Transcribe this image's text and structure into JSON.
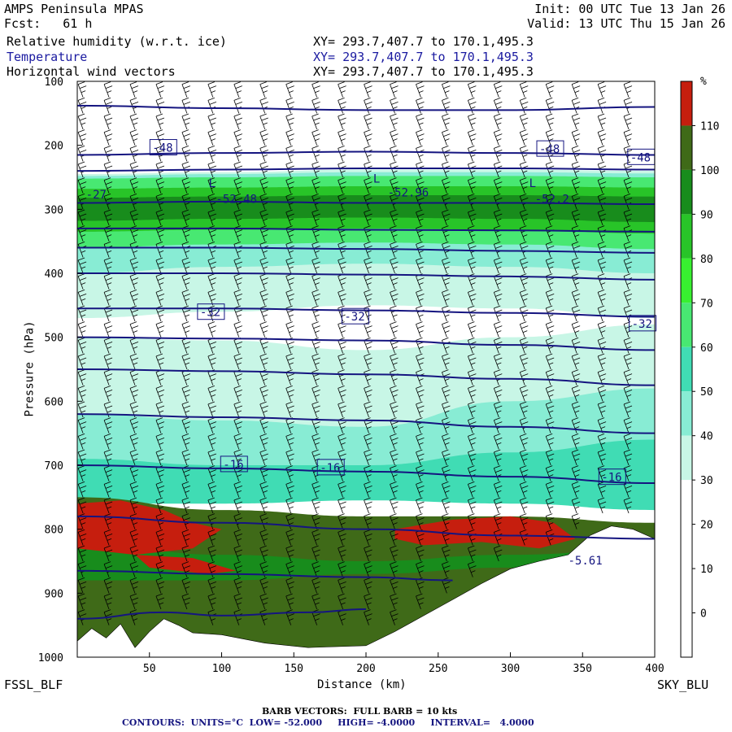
{
  "header": {
    "model": "AMPS Peninsula MPAS",
    "fcst": "Fcst:   61 h",
    "init": "Init: 00 UTC Tue 13 Jan 26",
    "valid": "Valid: 13 UTC Thu 15 Jan 26",
    "fields": [
      {
        "name": "Relative humidity (w.r.t. ice)",
        "xy": "XY= 293.7,407.7 to 170.1,495.3"
      },
      {
        "name": "Temperature",
        "xy": "XY= 293.7,407.7 to 170.1,495.3"
      },
      {
        "name": "Horizontal wind vectors",
        "xy": "XY= 293.7,407.7 to 170.1,495.3"
      }
    ]
  },
  "corners": {
    "left": "FSSL_BLF",
    "right": "SKY_BLU"
  },
  "footer": {
    "barb": "BARB VECTORS:  FULL BARB = 10 kts",
    "contours": "CONTOURS:  UNITS=°C  LOW= -52.000     HIGH= -4.0000     INTERVAL=   4.0000"
  },
  "colors": {
    "rh_0_10": "#ffffff",
    "rh_10_20": "#ffffff",
    "rh_20_30": "#ffffff",
    "rh_30_40": "#c8f6e6",
    "rh_40_50": "#88ecd4",
    "rh_50_60": "#40dcb4",
    "rh_60_70": "#48e872",
    "rh_70_80": "#38f030",
    "rh_80_90": "#28c428",
    "rh_90_100": "#188c1c",
    "rh_100_110": "#3f6a18",
    "rh_110_plus": "#c61e0e",
    "contour": "#151580",
    "terrain": "#ffffff"
  },
  "chart_data": {
    "type": "heatmap",
    "title": "AMPS Peninsula MPAS",
    "xlabel": "Distance (km)",
    "ylabel": "Pressure (hPa)",
    "xlim": [
      0,
      400
    ],
    "ylim": [
      1000,
      100
    ],
    "x_ticks": [
      50,
      100,
      150,
      200,
      250,
      300,
      350,
      400
    ],
    "y_ticks": [
      100,
      200,
      300,
      400,
      500,
      600,
      700,
      800,
      900,
      1000
    ],
    "colorbar": {
      "unit": "%",
      "labels": [
        "110",
        "100",
        "90",
        "80",
        "70",
        "60",
        "50",
        "40",
        "30",
        "20",
        "10",
        "0"
      ],
      "bins": [
        {
          "from": 110,
          "to": 120,
          "color": "#c61e0e"
        },
        {
          "from": 100,
          "to": 110,
          "color": "#3f6a18"
        },
        {
          "from": 90,
          "to": 100,
          "color": "#188c1c"
        },
        {
          "from": 80,
          "to": 90,
          "color": "#28c428"
        },
        {
          "from": 70,
          "to": 80,
          "color": "#38f030"
        },
        {
          "from": 60,
          "to": 70,
          "color": "#48e872"
        },
        {
          "from": 50,
          "to": 60,
          "color": "#40dcb4"
        },
        {
          "from": 40,
          "to": 50,
          "color": "#88ecd4"
        },
        {
          "from": 30,
          "to": 40,
          "color": "#c8f6e6"
        },
        {
          "from": 20,
          "to": 30,
          "color": "#ffffff"
        },
        {
          "from": 10,
          "to": 20,
          "color": "#ffffff"
        },
        {
          "from": 0,
          "to": 10,
          "color": "#ffffff"
        },
        {
          "from": -10,
          "to": 0,
          "color": "#ffffff"
        }
      ]
    },
    "rh_bands": [
      {
        "color": "#c8f6e6",
        "top": [
          [
            0,
            245
          ],
          [
            100,
            242
          ],
          [
            200,
            238
          ],
          [
            300,
            238
          ],
          [
            400,
            240
          ]
        ],
        "bottom": [
          [
            0,
            470
          ],
          [
            100,
            460
          ],
          [
            200,
            450
          ],
          [
            300,
            455
          ],
          [
            400,
            470
          ]
        ]
      },
      {
        "color": "#88ecd4",
        "top": [
          [
            0,
            248
          ],
          [
            100,
            245
          ],
          [
            200,
            242
          ],
          [
            300,
            242
          ],
          [
            400,
            244
          ]
        ],
        "bottom": [
          [
            0,
            400
          ],
          [
            100,
            390
          ],
          [
            200,
            385
          ],
          [
            300,
            390
          ],
          [
            400,
            400
          ]
        ]
      },
      {
        "color": "#48e872",
        "top": [
          [
            0,
            252
          ],
          [
            100,
            250
          ],
          [
            200,
            248
          ],
          [
            300,
            248
          ],
          [
            400,
            250
          ]
        ],
        "bottom": [
          [
            0,
            360
          ],
          [
            100,
            355
          ],
          [
            200,
            352
          ],
          [
            300,
            355
          ],
          [
            400,
            362
          ]
        ]
      },
      {
        "color": "#28c428",
        "top": [
          [
            0,
            268
          ],
          [
            100,
            266
          ],
          [
            200,
            264
          ],
          [
            300,
            264
          ],
          [
            400,
            266
          ]
        ],
        "bottom": [
          [
            0,
            335
          ],
          [
            100,
            332
          ],
          [
            200,
            330
          ],
          [
            300,
            332
          ],
          [
            400,
            338
          ]
        ]
      },
      {
        "color": "#188c1c",
        "top": [
          [
            0,
            282
          ],
          [
            100,
            280
          ],
          [
            200,
            278
          ],
          [
            300,
            278
          ],
          [
            400,
            280
          ]
        ],
        "bottom": [
          [
            0,
            318
          ],
          [
            100,
            315
          ],
          [
            200,
            313
          ],
          [
            300,
            315
          ],
          [
            400,
            320
          ]
        ]
      },
      {
        "color": "#c8f6e6",
        "top": [
          [
            0,
            500
          ],
          [
            100,
            505
          ],
          [
            200,
            520
          ],
          [
            300,
            500
          ],
          [
            400,
            480
          ]
        ],
        "bottom": [
          [
            0,
            700
          ],
          [
            100,
            690
          ],
          [
            200,
            680
          ],
          [
            300,
            700
          ],
          [
            400,
            720
          ]
        ]
      },
      {
        "color": "#88ecd4",
        "top": [
          [
            0,
            620
          ],
          [
            100,
            630
          ],
          [
            200,
            640
          ],
          [
            300,
            600
          ],
          [
            400,
            580
          ]
        ],
        "bottom": [
          [
            0,
            720
          ],
          [
            100,
            710
          ],
          [
            200,
            700
          ],
          [
            300,
            715
          ],
          [
            400,
            740
          ]
        ]
      },
      {
        "color": "#40dcb4",
        "top": [
          [
            0,
            690
          ],
          [
            100,
            700
          ],
          [
            200,
            700
          ],
          [
            300,
            680
          ],
          [
            400,
            660
          ]
        ],
        "bottom": [
          [
            0,
            760
          ],
          [
            100,
            760
          ],
          [
            200,
            755
          ],
          [
            300,
            760
          ],
          [
            400,
            770
          ]
        ]
      },
      {
        "color": "#3f6a18",
        "top": [
          [
            0,
            750
          ],
          [
            100,
            770
          ],
          [
            200,
            780
          ],
          [
            300,
            780
          ],
          [
            400,
            790
          ]
        ],
        "bottom": [
          [
            0,
            1000
          ],
          [
            100,
            1000
          ],
          [
            200,
            1000
          ],
          [
            300,
            1000
          ],
          [
            400,
            1000
          ]
        ]
      },
      {
        "color": "#188c1c",
        "top": [
          [
            0,
            820
          ],
          [
            100,
            840
          ],
          [
            200,
            850
          ],
          [
            300,
            840
          ],
          [
            400,
            830
          ]
        ],
        "bottom": [
          [
            0,
            880
          ],
          [
            100,
            880
          ],
          [
            200,
            870
          ],
          [
            300,
            860
          ],
          [
            400,
            850
          ]
        ]
      }
    ],
    "rh_red_patches": [
      {
        "points": [
          [
            0,
            760
          ],
          [
            30,
            755
          ],
          [
            60,
            770
          ],
          [
            80,
            790
          ],
          [
            100,
            800
          ],
          [
            80,
            830
          ],
          [
            40,
            840
          ],
          [
            0,
            830
          ]
        ]
      },
      {
        "points": [
          [
            40,
            840
          ],
          [
            80,
            845
          ],
          [
            110,
            865
          ],
          [
            90,
            870
          ],
          [
            50,
            860
          ]
        ]
      },
      {
        "points": [
          [
            220,
            800
          ],
          [
            260,
            785
          ],
          [
            300,
            780
          ],
          [
            330,
            790
          ],
          [
            345,
            815
          ],
          [
            320,
            830
          ],
          [
            280,
            820
          ],
          [
            240,
            825
          ],
          [
            220,
            815
          ]
        ]
      }
    ],
    "terrain": [
      [
        0,
        975
      ],
      [
        10,
        955
      ],
      [
        20,
        970
      ],
      [
        30,
        948
      ],
      [
        40,
        985
      ],
      [
        50,
        960
      ],
      [
        60,
        940
      ],
      [
        70,
        950
      ],
      [
        80,
        962
      ],
      [
        100,
        965
      ],
      [
        130,
        978
      ],
      [
        160,
        985
      ],
      [
        200,
        982
      ],
      [
        220,
        960
      ],
      [
        240,
        935
      ],
      [
        260,
        910
      ],
      [
        280,
        885
      ],
      [
        300,
        862
      ],
      [
        320,
        850
      ],
      [
        340,
        840
      ],
      [
        355,
        810
      ],
      [
        370,
        795
      ],
      [
        385,
        800
      ],
      [
        400,
        815
      ],
      [
        400,
        1000
      ],
      [
        0,
        1000
      ]
    ],
    "temperature_contours": [
      {
        "value": -48,
        "points": [
          [
            0,
            215
          ],
          [
            100,
            212
          ],
          [
            200,
            210
          ],
          [
            300,
            212
          ],
          [
            400,
            215
          ]
        ]
      },
      {
        "value": -52,
        "points": [
          [
            0,
            240
          ],
          [
            100,
            238
          ],
          [
            200,
            236
          ],
          [
            300,
            236
          ],
          [
            400,
            238
          ]
        ]
      },
      {
        "value": -52,
        "points": [
          [
            0,
            138
          ],
          [
            100,
            142
          ],
          [
            200,
            145
          ],
          [
            300,
            145
          ],
          [
            400,
            140
          ]
        ]
      },
      {
        "value": -48,
        "points": [
          [
            0,
            290
          ],
          [
            100,
            288
          ],
          [
            200,
            290
          ],
          [
            300,
            290
          ],
          [
            400,
            292
          ]
        ]
      },
      {
        "value": -44,
        "points": [
          [
            0,
            330
          ],
          [
            100,
            330
          ],
          [
            200,
            332
          ],
          [
            300,
            333
          ],
          [
            400,
            335
          ]
        ]
      },
      {
        "value": -40,
        "points": [
          [
            0,
            360
          ],
          [
            100,
            360
          ],
          [
            200,
            362
          ],
          [
            300,
            365
          ],
          [
            400,
            368
          ]
        ]
      },
      {
        "value": -36,
        "points": [
          [
            0,
            400
          ],
          [
            100,
            400
          ],
          [
            200,
            402
          ],
          [
            300,
            405
          ],
          [
            400,
            410
          ]
        ]
      },
      {
        "value": -32,
        "points": [
          [
            0,
            455
          ],
          [
            100,
            455
          ],
          [
            200,
            458
          ],
          [
            300,
            462
          ],
          [
            400,
            468
          ]
        ]
      },
      {
        "value": -28,
        "points": [
          [
            0,
            500
          ],
          [
            100,
            502
          ],
          [
            200,
            505
          ],
          [
            300,
            512
          ],
          [
            400,
            520
          ]
        ]
      },
      {
        "value": -24,
        "points": [
          [
            0,
            550
          ],
          [
            100,
            553
          ],
          [
            200,
            558
          ],
          [
            300,
            565
          ],
          [
            400,
            575
          ]
        ]
      },
      {
        "value": -20,
        "points": [
          [
            0,
            620
          ],
          [
            100,
            625
          ],
          [
            200,
            630
          ],
          [
            300,
            640
          ],
          [
            400,
            650
          ]
        ]
      },
      {
        "value": -16,
        "points": [
          [
            0,
            700
          ],
          [
            100,
            705
          ],
          [
            200,
            710
          ],
          [
            300,
            718
          ],
          [
            400,
            728
          ]
        ]
      },
      {
        "value": -12,
        "points": [
          [
            0,
            780
          ],
          [
            100,
            790
          ],
          [
            200,
            800
          ],
          [
            300,
            810
          ],
          [
            400,
            815
          ]
        ]
      },
      {
        "value": -8,
        "points": [
          [
            0,
            865
          ],
          [
            100,
            870
          ],
          [
            200,
            875
          ],
          [
            260,
            880
          ]
        ]
      },
      {
        "value": -4,
        "points": [
          [
            0,
            940
          ],
          [
            60,
            930
          ],
          [
            100,
            935
          ],
          [
            160,
            930
          ],
          [
            200,
            925
          ]
        ]
      }
    ],
    "contour_labels": [
      {
        "text": "-48",
        "x": 52,
        "p": 210
      },
      {
        "text": "-48",
        "x": 320,
        "p": 212
      },
      {
        "text": "-48",
        "x": 383,
        "p": 225
      },
      {
        "text": "-32",
        "x": 85,
        "p": 467
      },
      {
        "text": "-32",
        "x": 185,
        "p": 474
      },
      {
        "text": "-32",
        "x": 384,
        "p": 485
      },
      {
        "text": "-16",
        "x": 101,
        "p": 705
      },
      {
        "text": "-16",
        "x": 168,
        "p": 710
      },
      {
        "text": "-16",
        "x": 363,
        "p": 725
      }
    ],
    "extrema_labels": [
      {
        "text": "L",
        "x": 91,
        "p": 265
      },
      {
        "text": "-52.48",
        "x": 96,
        "p": 290
      },
      {
        "text": "L",
        "x": 205,
        "p": 258
      },
      {
        "text": "-52.96",
        "x": 215,
        "p": 280
      },
      {
        "text": "L",
        "x": 313,
        "p": 265
      },
      {
        "text": "-52.2",
        "x": 317,
        "p": 290
      },
      {
        "text": "-27",
        "x": 6,
        "p": 283
      },
      {
        "text": "-5.61",
        "x": 340,
        "p": 855
      }
    ],
    "wind_barbs": {
      "x_spacing_km": 18,
      "p_levels": [
        125,
        150,
        175,
        200,
        225,
        250,
        275,
        300,
        325,
        350,
        375,
        400,
        425,
        450,
        475,
        500,
        525,
        550,
        575,
        600,
        625,
        650,
        675,
        700,
        725,
        750,
        775,
        800,
        825,
        850,
        875,
        900,
        925,
        950
      ]
    }
  }
}
